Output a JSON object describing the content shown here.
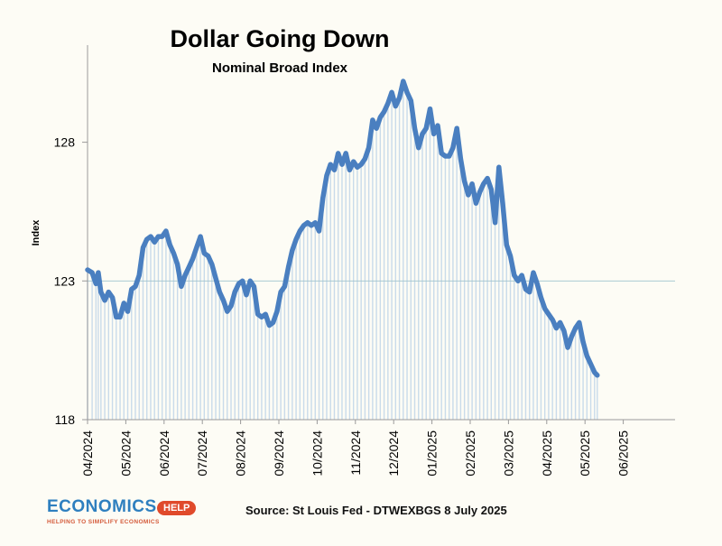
{
  "chart_data": {
    "type": "area",
    "title": "Dollar Going Down",
    "subtitle": "Nominal Broad Index",
    "ylabel": "Index",
    "ylim": [
      118,
      131.5
    ],
    "yticks": [
      118,
      123,
      128
    ],
    "x_ticks": [
      "04/2024",
      "05/2024",
      "06/2024",
      "07/2024",
      "08/2024",
      "09/2024",
      "10/2024",
      "11/2024",
      "12/2024",
      "01/2025",
      "02/2025",
      "03/2025",
      "04/2025",
      "05/2025",
      "06/2025"
    ],
    "x_start": "04/2024",
    "grid": false,
    "color": "#4a7fc0",
    "series": [
      {
        "name": "",
        "points": [
          [
            0.0,
            123.4
          ],
          [
            0.12,
            123.3
          ],
          [
            0.22,
            122.9
          ],
          [
            0.28,
            123.3
          ],
          [
            0.35,
            122.6
          ],
          [
            0.45,
            122.3
          ],
          [
            0.55,
            122.6
          ],
          [
            0.65,
            122.4
          ],
          [
            0.75,
            121.7
          ],
          [
            0.85,
            121.7
          ],
          [
            0.95,
            122.2
          ],
          [
            1.05,
            121.9
          ],
          [
            1.15,
            122.7
          ],
          [
            1.25,
            122.8
          ],
          [
            1.35,
            123.2
          ],
          [
            1.45,
            124.2
          ],
          [
            1.55,
            124.5
          ],
          [
            1.65,
            124.6
          ],
          [
            1.75,
            124.4
          ],
          [
            1.85,
            124.6
          ],
          [
            1.95,
            124.6
          ],
          [
            2.05,
            124.8
          ],
          [
            2.15,
            124.3
          ],
          [
            2.25,
            124.0
          ],
          [
            2.35,
            123.6
          ],
          [
            2.45,
            122.8
          ],
          [
            2.55,
            123.2
          ],
          [
            2.65,
            123.5
          ],
          [
            2.75,
            123.8
          ],
          [
            2.85,
            124.2
          ],
          [
            2.95,
            124.6
          ],
          [
            3.05,
            124.0
          ],
          [
            3.15,
            123.9
          ],
          [
            3.25,
            123.6
          ],
          [
            3.35,
            123.1
          ],
          [
            3.45,
            122.6
          ],
          [
            3.55,
            122.3
          ],
          [
            3.65,
            121.9
          ],
          [
            3.75,
            122.1
          ],
          [
            3.85,
            122.6
          ],
          [
            3.95,
            122.9
          ],
          [
            4.05,
            123.0
          ],
          [
            4.15,
            122.5
          ],
          [
            4.25,
            123.0
          ],
          [
            4.35,
            122.8
          ],
          [
            4.45,
            121.8
          ],
          [
            4.55,
            121.7
          ],
          [
            4.65,
            121.8
          ],
          [
            4.75,
            121.4
          ],
          [
            4.85,
            121.5
          ],
          [
            4.95,
            121.9
          ],
          [
            5.05,
            122.6
          ],
          [
            5.15,
            122.8
          ],
          [
            5.25,
            123.5
          ],
          [
            5.35,
            124.1
          ],
          [
            5.45,
            124.5
          ],
          [
            5.55,
            124.8
          ],
          [
            5.65,
            125.0
          ],
          [
            5.75,
            125.1
          ],
          [
            5.85,
            125.0
          ],
          [
            5.95,
            125.1
          ],
          [
            6.05,
            124.8
          ],
          [
            6.15,
            126.0
          ],
          [
            6.25,
            126.8
          ],
          [
            6.35,
            127.2
          ],
          [
            6.45,
            127.0
          ],
          [
            6.55,
            127.6
          ],
          [
            6.65,
            127.2
          ],
          [
            6.75,
            127.6
          ],
          [
            6.85,
            127.0
          ],
          [
            6.95,
            127.3
          ],
          [
            7.05,
            127.1
          ],
          [
            7.15,
            127.2
          ],
          [
            7.25,
            127.4
          ],
          [
            7.35,
            127.8
          ],
          [
            7.45,
            128.8
          ],
          [
            7.55,
            128.5
          ],
          [
            7.65,
            128.9
          ],
          [
            7.75,
            129.1
          ],
          [
            7.85,
            129.4
          ],
          [
            7.95,
            129.8
          ],
          [
            8.05,
            129.3
          ],
          [
            8.15,
            129.6
          ],
          [
            8.25,
            130.2
          ],
          [
            8.35,
            129.8
          ],
          [
            8.45,
            129.5
          ],
          [
            8.55,
            128.5
          ],
          [
            8.65,
            127.8
          ],
          [
            8.75,
            128.3
          ],
          [
            8.85,
            128.5
          ],
          [
            8.95,
            129.2
          ],
          [
            9.05,
            128.3
          ],
          [
            9.15,
            128.6
          ],
          [
            9.25,
            127.6
          ],
          [
            9.35,
            127.5
          ],
          [
            9.45,
            127.5
          ],
          [
            9.55,
            127.8
          ],
          [
            9.65,
            128.5
          ],
          [
            9.75,
            127.4
          ],
          [
            9.85,
            126.6
          ],
          [
            9.95,
            126.1
          ],
          [
            10.05,
            126.5
          ],
          [
            10.15,
            125.8
          ],
          [
            10.25,
            126.2
          ],
          [
            10.35,
            126.5
          ],
          [
            10.45,
            126.7
          ],
          [
            10.55,
            126.3
          ],
          [
            10.65,
            125.1
          ],
          [
            10.75,
            127.1
          ],
          [
            10.85,
            125.8
          ],
          [
            10.95,
            124.3
          ],
          [
            11.05,
            123.9
          ],
          [
            11.15,
            123.2
          ],
          [
            11.25,
            123.0
          ],
          [
            11.35,
            123.2
          ],
          [
            11.45,
            122.7
          ],
          [
            11.55,
            122.6
          ],
          [
            11.65,
            123.3
          ],
          [
            11.75,
            122.9
          ],
          [
            11.85,
            122.4
          ],
          [
            11.95,
            122.0
          ],
          [
            12.05,
            121.8
          ],
          [
            12.15,
            121.6
          ],
          [
            12.25,
            121.3
          ],
          [
            12.35,
            121.5
          ],
          [
            12.45,
            121.2
          ],
          [
            12.55,
            120.6
          ],
          [
            12.65,
            121.0
          ],
          [
            12.75,
            121.3
          ],
          [
            12.85,
            121.5
          ],
          [
            12.95,
            120.8
          ],
          [
            13.05,
            120.3
          ],
          [
            13.15,
            120.0
          ],
          [
            13.25,
            119.7
          ],
          [
            13.32,
            119.6
          ]
        ]
      }
    ]
  },
  "source": "Source: St Louis Fed - DTWEXBGS 8 July 2025",
  "logo": {
    "word": "ECONOMICS",
    "badge": "HELP",
    "tagline": "HELPING TO SIMPLIFY ECONOMICS"
  }
}
